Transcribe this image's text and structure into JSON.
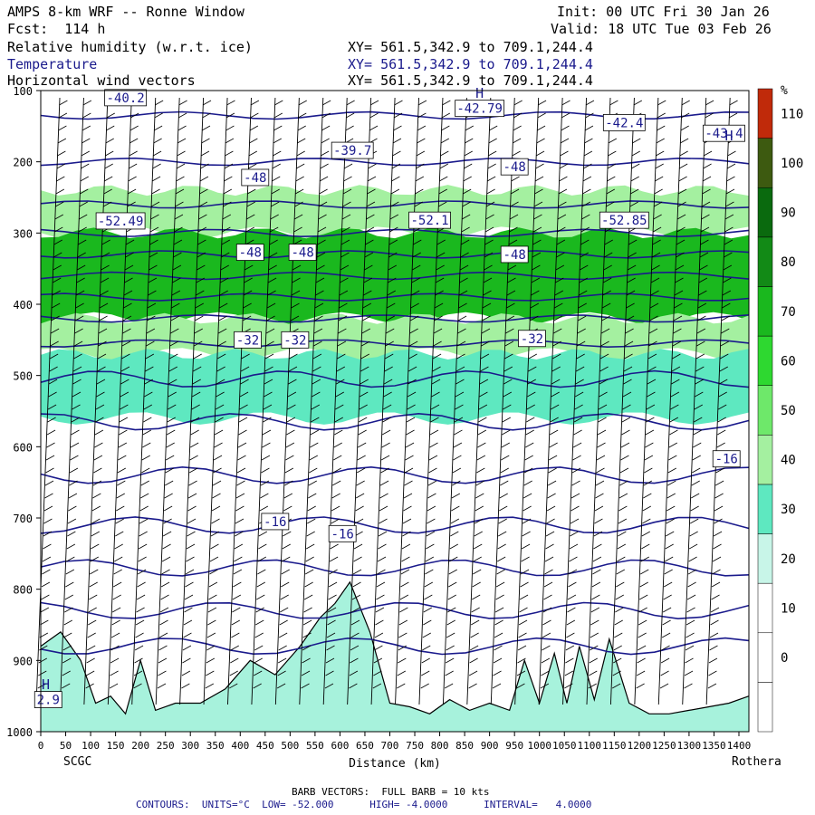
{
  "header": {
    "title": "AMPS 8-km WRF -- Ronne Window",
    "fcst": "Fcst:  114 h",
    "init": "Init: 00 UTC Fri 30 Jan 26",
    "valid": "Valid: 18 UTC Tue 03 Feb 26",
    "fields": [
      {
        "name": "Relative humidity (w.r.t. ice)",
        "xy": "XY= 561.5,342.9 to 709.1,244.4",
        "color": "#000000"
      },
      {
        "name": "Temperature",
        "xy": "XY= 561.5,342.9 to 709.1,244.4",
        "color": "#1a1a8c"
      },
      {
        "name": "Horizontal wind vectors",
        "xy": "XY= 561.5,342.9 to 709.1,244.4",
        "color": "#000000"
      }
    ]
  },
  "stations": {
    "left": "SCGC",
    "right": "Rothera"
  },
  "footer": {
    "barbs": "BARB VECTORS:  FULL BARB = 10 kts",
    "contours": "CONTOURS:  UNITS=°C  LOW= -52.000      HIGH= -4.0000      INTERVAL=   4.0000"
  },
  "chart_data": {
    "type": "heatmap",
    "xlabel": "Distance (km)",
    "ylabel": "",
    "x_ticks": [
      0,
      50,
      100,
      150,
      200,
      250,
      300,
      350,
      400,
      450,
      500,
      550,
      600,
      650,
      700,
      750,
      800,
      850,
      900,
      950,
      1000,
      1050,
      1100,
      1150,
      1200,
      1250,
      1300,
      1350,
      1400
    ],
    "xlim": [
      0,
      1420
    ],
    "y_ticks": [
      100,
      200,
      300,
      400,
      500,
      600,
      700,
      800,
      900,
      1000
    ],
    "ylim": [
      1000,
      100
    ],
    "colorbar": {
      "unit": "%",
      "levels": [
        0,
        10,
        20,
        30,
        40,
        50,
        60,
        70,
        80,
        90,
        100,
        110
      ],
      "colors": [
        "#ffffff",
        "#ffffff",
        "#ffffff",
        "#c8f5e8",
        "#5ee8c0",
        "#a4f0a0",
        "#6ee86a",
        "#2ed830",
        "#1ab81e",
        "#128a16",
        "#0a6a0e",
        "#3d5a10",
        "#c02a0a"
      ]
    },
    "rh_layers": [
      {
        "p_top": 240,
        "p_bot": 300,
        "rh": 45
      },
      {
        "p_top": 300,
        "p_bot": 420,
        "rh": 75
      },
      {
        "p_top": 420,
        "p_bot": 470,
        "rh": 45
      },
      {
        "p_top": 470,
        "p_bot": 560,
        "rh": 32
      }
    ],
    "temperature_labels": [
      {
        "x": 170,
        "p": 110,
        "text": "-40.2"
      },
      {
        "x": 880,
        "p": 125,
        "text": "-42.79"
      },
      {
        "x": 1170,
        "p": 145,
        "text": "-42.4"
      },
      {
        "x": 1370,
        "p": 160,
        "text": "-43.4"
      },
      {
        "x": 625,
        "p": 184,
        "text": "-39.7"
      },
      {
        "x": 430,
        "p": 222,
        "text": "-48"
      },
      {
        "x": 950,
        "p": 207,
        "text": "-48"
      },
      {
        "x": 160,
        "p": 283,
        "text": "-52.49"
      },
      {
        "x": 780,
        "p": 282,
        "text": "-52.1"
      },
      {
        "x": 1170,
        "p": 282,
        "text": "-52.85"
      },
      {
        "x": 420,
        "p": 327,
        "text": "-48"
      },
      {
        "x": 525,
        "p": 327,
        "text": "-48"
      },
      {
        "x": 950,
        "p": 330,
        "text": "-48"
      },
      {
        "x": 415,
        "p": 450,
        "text": "-32"
      },
      {
        "x": 510,
        "p": 450,
        "text": "-32"
      },
      {
        "x": 985,
        "p": 448,
        "text": "-32"
      },
      {
        "x": 1375,
        "p": 617,
        "text": "-16"
      },
      {
        "x": 470,
        "p": 705,
        "text": "-16"
      },
      {
        "x": 605,
        "p": 722,
        "text": "-16"
      },
      {
        "x": 15,
        "p": 955,
        "text": "2.9"
      }
    ],
    "highs": [
      {
        "x": 880,
        "p": 110
      },
      {
        "x": 1380,
        "p": 170
      },
      {
        "x": 10,
        "p": 940
      }
    ],
    "isotherm_pressures": [
      135,
      200,
      260,
      300,
      330,
      360,
      390,
      420,
      455,
      505,
      565,
      640,
      710,
      770,
      830,
      880
    ]
  }
}
